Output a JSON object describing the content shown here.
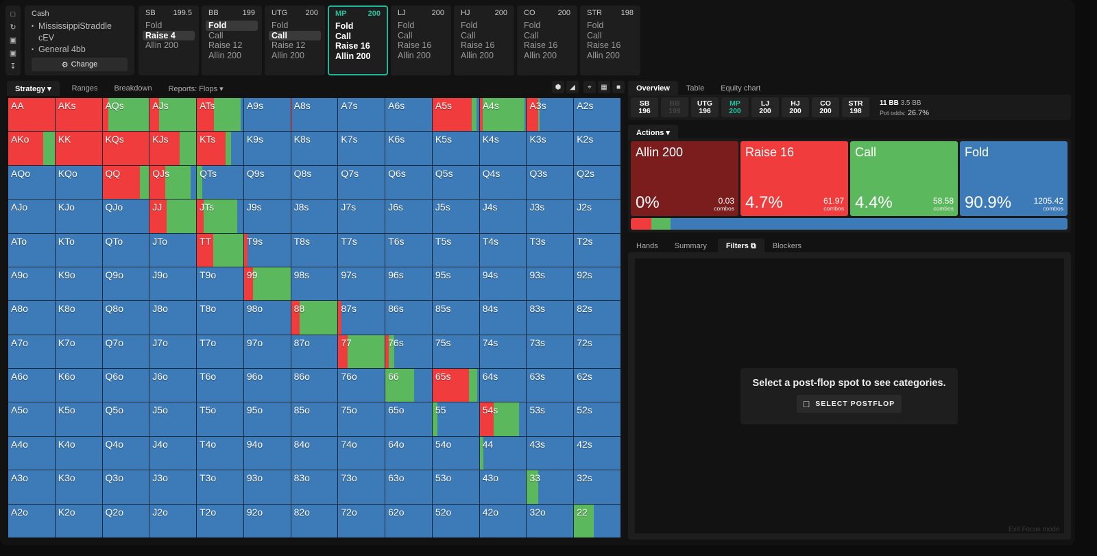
{
  "colors": {
    "allin": "#7b1d1d",
    "raise": "#f03c3c",
    "call": "#5cb85c",
    "fold": "#3d7ab8",
    "accent": "#1fc29f"
  },
  "sidebar_icons": [
    "bookmark-icon",
    "refresh-icon",
    "save-icon",
    "gamepad-icon",
    "expand-vertical-icon"
  ],
  "info": {
    "title": "Cash",
    "items": [
      "MississippiStraddle cEV",
      "General 4bb"
    ],
    "change_label": "Change"
  },
  "positions": [
    {
      "name": "SB",
      "stack": "199.5",
      "actions": [
        "Fold",
        "Raise 4",
        "Allin 200"
      ],
      "selected": 1
    },
    {
      "name": "BB",
      "stack": "199",
      "actions": [
        "Fold",
        "Call",
        "Raise 12",
        "Allin 200"
      ],
      "selected": 0
    },
    {
      "name": "UTG",
      "stack": "200",
      "actions": [
        "Fold",
        "Call",
        "Raise 12",
        "Allin 200"
      ],
      "selected": 1
    },
    {
      "name": "MP",
      "stack": "200",
      "actions": [
        "Fold",
        "Call",
        "Raise 16",
        "Allin 200"
      ],
      "selected": -1,
      "active": true
    },
    {
      "name": "LJ",
      "stack": "200",
      "actions": [
        "Fold",
        "Call",
        "Raise 16",
        "Allin 200"
      ],
      "selected": -1
    },
    {
      "name": "HJ",
      "stack": "200",
      "actions": [
        "Fold",
        "Call",
        "Raise 16",
        "Allin 200"
      ],
      "selected": -1
    },
    {
      "name": "CO",
      "stack": "200",
      "actions": [
        "Fold",
        "Call",
        "Raise 16",
        "Allin 200"
      ],
      "selected": -1
    },
    {
      "name": "STR",
      "stack": "198",
      "actions": [
        "Fold",
        "Call",
        "Raise 16",
        "Allin 200"
      ],
      "selected": -1
    }
  ],
  "left_tabs": [
    {
      "label": "Strategy",
      "active": true,
      "dropdown": true
    },
    {
      "label": "Ranges"
    },
    {
      "label": "Breakdown"
    },
    {
      "label": "Reports: Flops",
      "dropdown": true
    }
  ],
  "grid_tools": [
    "hexagon-icon",
    "contrast-icon",
    "crosshair-icon",
    "grid-icon",
    "square-icon"
  ],
  "hands": [
    [
      "AA",
      "AKs",
      "AQs",
      "AJs",
      "ATs",
      "A9s",
      "A8s",
      "A7s",
      "A6s",
      "A5s",
      "A4s",
      "A3s",
      "A2s"
    ],
    [
      "AKo",
      "KK",
      "KQs",
      "KJs",
      "KTs",
      "K9s",
      "K8s",
      "K7s",
      "K6s",
      "K5s",
      "K4s",
      "K3s",
      "K2s"
    ],
    [
      "AQo",
      "KQo",
      "QQ",
      "QJs",
      "QTs",
      "Q9s",
      "Q8s",
      "Q7s",
      "Q6s",
      "Q5s",
      "Q4s",
      "Q3s",
      "Q2s"
    ],
    [
      "AJo",
      "KJo",
      "QJo",
      "JJ",
      "JTs",
      "J9s",
      "J8s",
      "J7s",
      "J6s",
      "J5s",
      "J4s",
      "J3s",
      "J2s"
    ],
    [
      "ATo",
      "KTo",
      "QTo",
      "JTo",
      "TT",
      "T9s",
      "T8s",
      "T7s",
      "T6s",
      "T5s",
      "T4s",
      "T3s",
      "T2s"
    ],
    [
      "A9o",
      "K9o",
      "Q9o",
      "J9o",
      "T9o",
      "99",
      "98s",
      "97s",
      "96s",
      "95s",
      "94s",
      "93s",
      "92s"
    ],
    [
      "A8o",
      "K8o",
      "Q8o",
      "J8o",
      "T8o",
      "98o",
      "88",
      "87s",
      "86s",
      "85s",
      "84s",
      "83s",
      "82s"
    ],
    [
      "A7o",
      "K7o",
      "Q7o",
      "J7o",
      "T7o",
      "97o",
      "87o",
      "77",
      "76s",
      "75s",
      "74s",
      "73s",
      "72s"
    ],
    [
      "A6o",
      "K6o",
      "Q6o",
      "J6o",
      "T6o",
      "96o",
      "86o",
      "76o",
      "66",
      "65s",
      "64s",
      "63s",
      "62s"
    ],
    [
      "A5o",
      "K5o",
      "Q5o",
      "J5o",
      "T5o",
      "95o",
      "85o",
      "75o",
      "65o",
      "55",
      "54s",
      "53s",
      "52s"
    ],
    [
      "A4o",
      "K4o",
      "Q4o",
      "J4o",
      "T4o",
      "94o",
      "84o",
      "74o",
      "64o",
      "54o",
      "44",
      "43s",
      "42s"
    ],
    [
      "A3o",
      "K3o",
      "Q3o",
      "J3o",
      "T3o",
      "93o",
      "83o",
      "73o",
      "63o",
      "53o",
      "43o",
      "33",
      "32s"
    ],
    [
      "A2o",
      "K2o",
      "Q2o",
      "J2o",
      "T2o",
      "92o",
      "82o",
      "72o",
      "62o",
      "52o",
      "42o",
      "32o",
      "22"
    ]
  ],
  "strategy_raise_call": {
    "AA": [
      1,
      0
    ],
    "AKs": [
      1,
      0
    ],
    "AQs": [
      0.13,
      0.87
    ],
    "AJs": [
      0.2,
      0.8
    ],
    "ATs": [
      0.37,
      0.58
    ],
    "A8s": [
      0.02,
      0
    ],
    "A5s": [
      0.84,
      0.1
    ],
    "A4s": [
      0.07,
      0.9
    ],
    "A3s": [
      0.25,
      0.02
    ],
    "AKo": [
      0.75,
      0.25
    ],
    "KK": [
      1,
      0
    ],
    "KQs": [
      1,
      0
    ],
    "KJs": [
      0.65,
      0.35
    ],
    "KTs": [
      0.62,
      0.12
    ],
    "QQ": [
      0.8,
      0.2
    ],
    "QJs": [
      0.33,
      0.55
    ],
    "QTs": [
      0,
      0.12
    ],
    "JJ": [
      0.36,
      0.64
    ],
    "JTs": [
      0.15,
      0.72
    ],
    "TT": [
      0.35,
      0.65
    ],
    "T9s": [
      0.07,
      0
    ],
    "99": [
      0.2,
      0.8
    ],
    "88": [
      0.18,
      0.82
    ],
    "87s": [
      0.07,
      0
    ],
    "77": [
      0.2,
      0.8
    ],
    "76s": [
      0.07,
      0.12
    ],
    "66": [
      0,
      0.62
    ],
    "65s": [
      0.78,
      0.18
    ],
    "55": [
      0,
      0.1
    ],
    "54s": [
      0.3,
      0.55
    ],
    "44": [
      0,
      0.08
    ],
    "33": [
      0,
      0.24
    ],
    "22": [
      0,
      0.43
    ]
  },
  "right_tabs": [
    {
      "label": "Overview",
      "active": true
    },
    {
      "label": "Table"
    },
    {
      "label": "Equity chart"
    }
  ],
  "stacks": [
    {
      "name": "SB",
      "stack": "196"
    },
    {
      "name": "BB",
      "stack": "199",
      "dim": true
    },
    {
      "name": "UTG",
      "stack": "196"
    },
    {
      "name": "MP",
      "stack": "200",
      "active": true
    },
    {
      "name": "LJ",
      "stack": "200"
    },
    {
      "name": "HJ",
      "stack": "200"
    },
    {
      "name": "CO",
      "stack": "200"
    },
    {
      "name": "STR",
      "stack": "198"
    }
  ],
  "pot": {
    "pot": "11 BB",
    "to_call": "3.5 BB",
    "odds_label": "Pot odds:",
    "odds": "26.7%"
  },
  "actions_tab": "Actions",
  "actions": [
    {
      "name": "Allin 200",
      "pct": "0%",
      "combos": "0.03",
      "unit": "combos",
      "key": "allin",
      "frac": 0
    },
    {
      "name": "Raise 16",
      "pct": "4.7%",
      "combos": "61.97",
      "unit": "combos",
      "key": "raise",
      "frac": 0.047
    },
    {
      "name": "Call",
      "pct": "4.4%",
      "combos": "58.58",
      "unit": "combos",
      "key": "call",
      "frac": 0.044
    },
    {
      "name": "Fold",
      "pct": "90.9%",
      "combos": "1205.42",
      "unit": "combos",
      "key": "fold",
      "frac": 0.909
    }
  ],
  "bottom_tabs": [
    {
      "label": "Hands"
    },
    {
      "label": "Summary"
    },
    {
      "label": "Filters",
      "active": true,
      "icon": "copy-icon"
    },
    {
      "label": "Blockers"
    }
  ],
  "empty": {
    "message": "Select a post-flop spot to see categories.",
    "button": "SELECT POSTFLOP"
  },
  "exit_focus": "Exit Focus mode"
}
